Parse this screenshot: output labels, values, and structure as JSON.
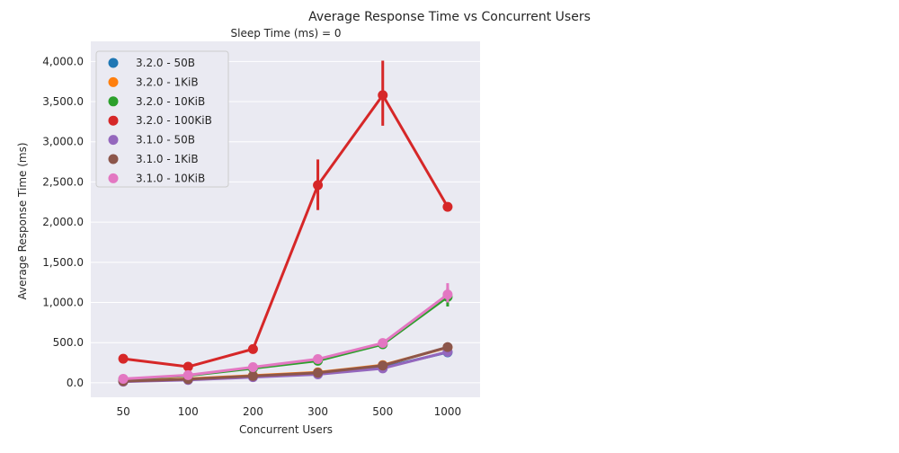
{
  "chart_data": {
    "type": "line",
    "title": "Average Response Time vs Concurrent Users",
    "subtitle": "Sleep Time (ms) = 0",
    "xlabel": "Concurrent Users",
    "ylabel": "Average Response Time (ms)",
    "categories": [
      "50",
      "100",
      "200",
      "300",
      "500",
      "1000"
    ],
    "ylim": [
      -180,
      4250
    ],
    "yticks": [
      0,
      500,
      1000,
      1500,
      2000,
      2500,
      3000,
      3500,
      4000
    ],
    "ytick_labels": [
      "0.0",
      "500.0",
      "1,000.0",
      "1,500.0",
      "2,000.0",
      "2,500.0",
      "3,000.0",
      "3,500.0",
      "4,000.0"
    ],
    "grid": true,
    "legend_position": "top-left",
    "series": [
      {
        "name": "3.2.0 - 50B",
        "color": "#1f77b4",
        "values": [
          20,
          40,
          75,
          110,
          190,
          380
        ]
      },
      {
        "name": "3.2.0 - 1KiB",
        "color": "#ff7f0e",
        "values": [
          25,
          50,
          90,
          130,
          220,
          440
        ]
      },
      {
        "name": "3.2.0 - 10KiB",
        "color": "#2ca02c",
        "values": [
          45,
          90,
          180,
          275,
          480,
          1070
        ],
        "errors": [
          null,
          null,
          null,
          null,
          null,
          [
            950,
            1180
          ]
        ]
      },
      {
        "name": "3.2.0 - 100KiB",
        "color": "#d62728",
        "values": [
          300,
          200,
          420,
          2460,
          3580,
          2190
        ],
        "errors": [
          null,
          null,
          null,
          [
            2150,
            2780
          ],
          [
            3200,
            4010
          ],
          null
        ]
      },
      {
        "name": "3.1.0 - 50B",
        "color": "#9467bd",
        "values": [
          15,
          35,
          70,
          105,
          180,
          385
        ]
      },
      {
        "name": "3.1.0 - 1KiB",
        "color": "#8c564b",
        "values": [
          20,
          45,
          85,
          125,
          215,
          445
        ]
      },
      {
        "name": "3.1.0 - 10KiB",
        "color": "#e377c2",
        "values": [
          50,
          95,
          195,
          295,
          495,
          1100
        ],
        "errors": [
          null,
          null,
          null,
          null,
          null,
          [
            1000,
            1240
          ]
        ]
      }
    ]
  }
}
